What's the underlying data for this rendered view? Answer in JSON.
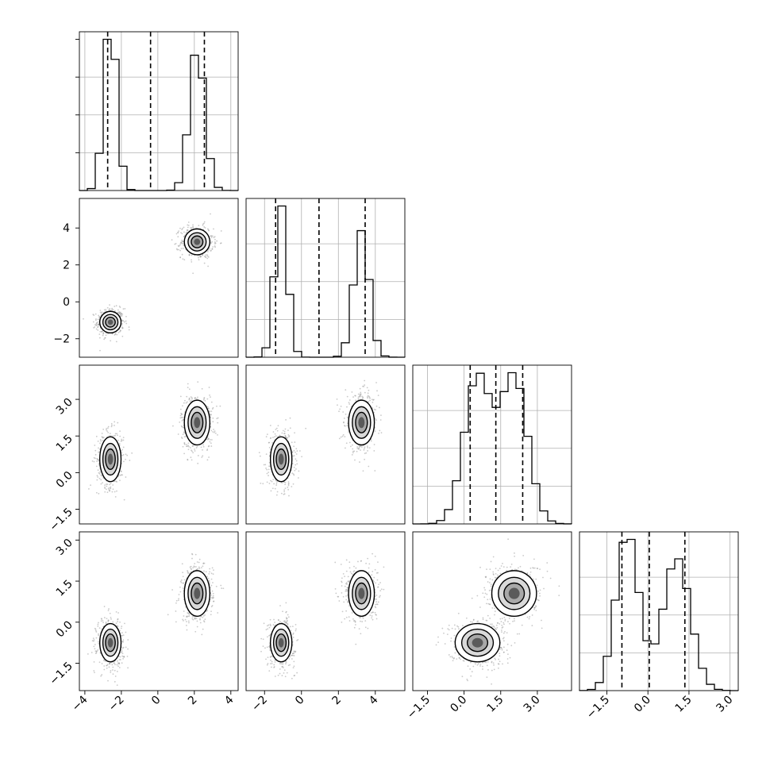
{
  "chart_data": {
    "type": "corner",
    "title": "",
    "parameters": [
      {
        "label": "",
        "range": [
          -4.3,
          4.4
        ],
        "ticks": [
          -4,
          -2,
          0,
          2,
          4
        ],
        "tick_labels": [
          "−4",
          "−2",
          "0",
          "2",
          "4"
        ],
        "quantiles": [
          -2.75,
          -0.4,
          2.55
        ],
        "components": [
          {
            "mean": -2.6,
            "sd": 0.35,
            "weight": 1.0
          },
          {
            "mean": 2.15,
            "sd": 0.42,
            "weight": 1.0
          }
        ]
      },
      {
        "label": "",
        "range": [
          -3.0,
          5.6
        ],
        "ticks": [
          -2,
          0,
          2,
          4
        ],
        "tick_labels": [
          "−2",
          "0",
          "2",
          "4"
        ],
        "quantiles": [
          -1.4,
          0.95,
          3.45
        ],
        "components": [
          {
            "mean": -1.1,
            "sd": 0.35,
            "weight": 1.0
          },
          {
            "mean": 3.25,
            "sd": 0.42,
            "weight": 1.0
          }
        ]
      },
      {
        "label": "",
        "range": [
          -2.1,
          4.4
        ],
        "ticks": [
          -1.5,
          0.0,
          1.5,
          3.0
        ],
        "tick_labels": [
          "−1.5",
          "0.0",
          "1.5",
          "3.0"
        ],
        "quantiles": [
          0.25,
          1.3,
          2.4
        ],
        "components": [
          {
            "mean": 0.55,
            "sd": 0.55,
            "weight": 1.0
          },
          {
            "mean": 2.05,
            "sd": 0.55,
            "weight": 1.0
          }
        ]
      },
      {
        "label": "",
        "range": [
          -2.5,
          3.3
        ],
        "ticks": [
          -1.5,
          0.0,
          1.5,
          3.0
        ],
        "tick_labels": [
          "−1.5",
          "0.0",
          "1.5",
          "3.0"
        ],
        "quantiles": [
          -0.95,
          0.05,
          1.35
        ],
        "components": [
          {
            "mean": -0.75,
            "sd": 0.42,
            "weight": 1.0
          },
          {
            "mean": 1.05,
            "sd": 0.5,
            "weight": 1.0
          }
        ]
      }
    ],
    "histogram_bins": 20,
    "contour_levels": [
      0.25,
      0.5,
      0.75
    ],
    "grid": true,
    "legend": "none",
    "colors": {
      "line": "#000000",
      "quantile": "#000000",
      "density": "#000000",
      "grid": "#b0b0b0",
      "scatter": "#8a8a8a"
    }
  }
}
